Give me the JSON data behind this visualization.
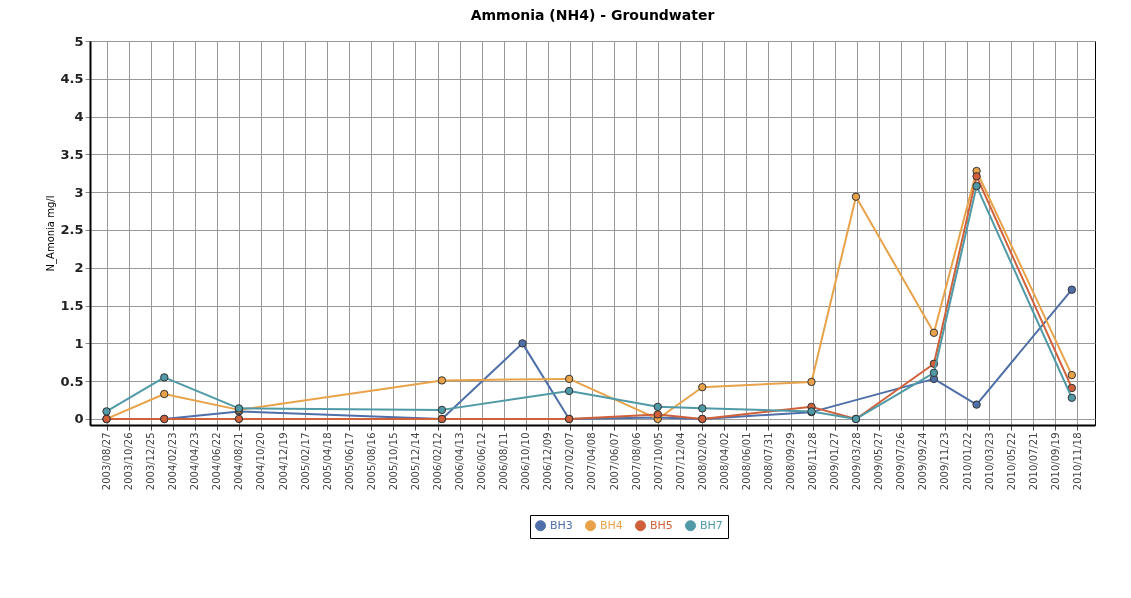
{
  "chart_data": {
    "type": "line",
    "title": "Ammonia (NH4) - Groundwater",
    "ylabel": "N_Amonia mg/l",
    "xlim": [
      "2003-07-13",
      "2011-01-05"
    ],
    "ylim": [
      -0.08,
      5
    ],
    "yticks": [
      0,
      0.5,
      1,
      1.5,
      2,
      2.5,
      3,
      3.5,
      4,
      4.5,
      5
    ],
    "xticks": [
      {
        "value": "2003-08-27",
        "label": "2003/08/27"
      },
      {
        "value": "2003-10-26",
        "label": "2003/10/26"
      },
      {
        "value": "2003-12-25",
        "label": "2003/12/25"
      },
      {
        "value": "2004-02-23",
        "label": "2004/02/23"
      },
      {
        "value": "2004-04-23",
        "label": "2004/04/23"
      },
      {
        "value": "2004-06-22",
        "label": "2004/06/22"
      },
      {
        "value": "2004-08-21",
        "label": "2004/08/21"
      },
      {
        "value": "2004-10-20",
        "label": "2004/10/20"
      },
      {
        "value": "2004-12-19",
        "label": "2004/12/19"
      },
      {
        "value": "2005-02-17",
        "label": "2005/02/17"
      },
      {
        "value": "2005-04-18",
        "label": "2005/04/18"
      },
      {
        "value": "2005-06-17",
        "label": "2005/06/17"
      },
      {
        "value": "2005-08-16",
        "label": "2005/08/16"
      },
      {
        "value": "2005-10-15",
        "label": "2005/10/15"
      },
      {
        "value": "2005-12-14",
        "label": "2005/12/14"
      },
      {
        "value": "2006-02-12",
        "label": "2006/02/12"
      },
      {
        "value": "2006-04-13",
        "label": "2006/04/13"
      },
      {
        "value": "2006-06-12",
        "label": "2006/06/12"
      },
      {
        "value": "2006-08-11",
        "label": "2006/08/11"
      },
      {
        "value": "2006-10-10",
        "label": "2006/10/10"
      },
      {
        "value": "2006-12-09",
        "label": "2006/12/09"
      },
      {
        "value": "2007-02-07",
        "label": "2007/02/07"
      },
      {
        "value": "2007-04-08",
        "label": "2007/04/08"
      },
      {
        "value": "2007-06-07",
        "label": "2007/06/07"
      },
      {
        "value": "2007-08-06",
        "label": "2007/08/06"
      },
      {
        "value": "2007-10-05",
        "label": "2007/10/05"
      },
      {
        "value": "2007-12-04",
        "label": "2007/12/04"
      },
      {
        "value": "2008-02-02",
        "label": "2008/02/02"
      },
      {
        "value": "2008-04-02",
        "label": "2008/04/02"
      },
      {
        "value": "2008-06-01",
        "label": "2008/06/01"
      },
      {
        "value": "2008-07-31",
        "label": "2008/07/31"
      },
      {
        "value": "2008-09-29",
        "label": "2008/09/29"
      },
      {
        "value": "2008-11-28",
        "label": "2008/11/28"
      },
      {
        "value": "2009-01-27",
        "label": "2009/01/27"
      },
      {
        "value": "2009-03-28",
        "label": "2009/03/28"
      },
      {
        "value": "2009-05-27",
        "label": "2009/05/27"
      },
      {
        "value": "2009-07-26",
        "label": "2009/07/26"
      },
      {
        "value": "2009-09-24",
        "label": "2009/09/24"
      },
      {
        "value": "2009-11-23",
        "label": "2009/11/23"
      },
      {
        "value": "2010-01-22",
        "label": "2010/01/22"
      },
      {
        "value": "2010-03-23",
        "label": "2010/03/23"
      },
      {
        "value": "2010-05-22",
        "label": "2010/05/22"
      },
      {
        "value": "2010-07-21",
        "label": "2010/07/21"
      },
      {
        "value": "2010-09-19",
        "label": "2010/09/19"
      },
      {
        "value": "2010-11-18",
        "label": "2010/11/18"
      }
    ],
    "grid": true,
    "legend": "bottom",
    "marker": "circle",
    "line_style": "solid",
    "series": [
      {
        "name": "BH3",
        "color": "#4f6fa8",
        "x": [
          "2003-08-27",
          "2004-01-31",
          "2004-08-21",
          "2006-02-24",
          "2006-10-01",
          "2007-02-05",
          "2007-10-04",
          "2008-02-02",
          "2008-11-25",
          "2009-10-24",
          "2010-02-17",
          "2010-11-03"
        ],
        "values": [
          0,
          0,
          0.1,
          0,
          1.0,
          0,
          0.02,
          0,
          0.09,
          0.53,
          0.19,
          1.71
        ]
      },
      {
        "name": "BH4",
        "color": "#e8a34a",
        "x": [
          "2003-08-27",
          "2004-01-31",
          "2004-08-21",
          "2006-02-24",
          "2007-02-05",
          "2007-10-04",
          "2008-02-02",
          "2008-11-25",
          "2009-03-26",
          "2009-10-24",
          "2010-02-17",
          "2010-11-03"
        ],
        "values": [
          0,
          0.33,
          0.12,
          0.51,
          0.53,
          0,
          0.42,
          0.49,
          2.94,
          1.14,
          3.28,
          0.58
        ]
      },
      {
        "name": "BH5",
        "color": "#d0603a",
        "x": [
          "2003-08-27",
          "2004-01-31",
          "2004-08-21",
          "2006-02-24",
          "2007-02-05",
          "2007-10-04",
          "2008-02-02",
          "2008-11-25",
          "2009-03-26",
          "2009-10-24",
          "2010-02-17",
          "2010-11-03"
        ],
        "values": [
          0,
          0,
          0,
          0,
          0,
          0.06,
          0,
          0.16,
          0,
          0.73,
          3.21,
          0.41
        ]
      },
      {
        "name": "BH7",
        "color": "#4f9aa6",
        "x": [
          "2003-08-27",
          "2004-01-31",
          "2004-08-21",
          "2006-02-24",
          "2007-02-05",
          "2007-10-04",
          "2008-02-02",
          "2008-11-25",
          "2009-03-26",
          "2009-10-24",
          "2010-02-17",
          "2010-11-03"
        ],
        "values": [
          0.1,
          0.55,
          0.14,
          0.12,
          0.37,
          0.16,
          0.14,
          0.1,
          0,
          0.61,
          3.08,
          0.28
        ]
      }
    ]
  }
}
